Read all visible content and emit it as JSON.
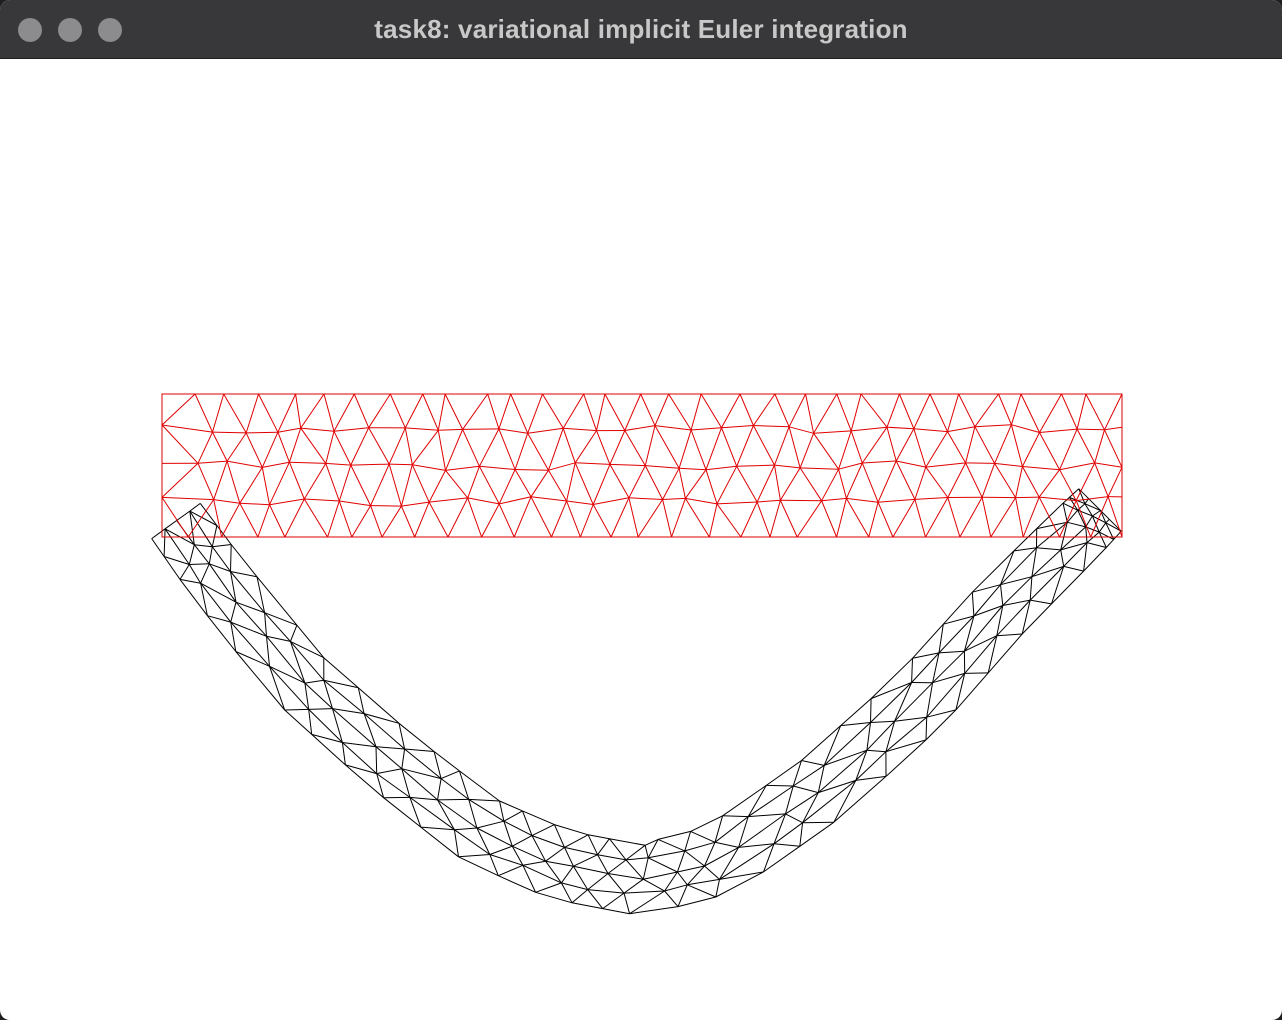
{
  "window": {
    "title": "task8: variational implicit Euler integration",
    "controls": [
      "close",
      "minimize",
      "maximize"
    ]
  },
  "scene": {
    "rest_mesh": {
      "name": "rest-pose mesh",
      "color": "#e00000"
    },
    "deformed_mesh": {
      "name": "deformed mesh",
      "color": "#000000"
    },
    "background": "#ffffff"
  }
}
